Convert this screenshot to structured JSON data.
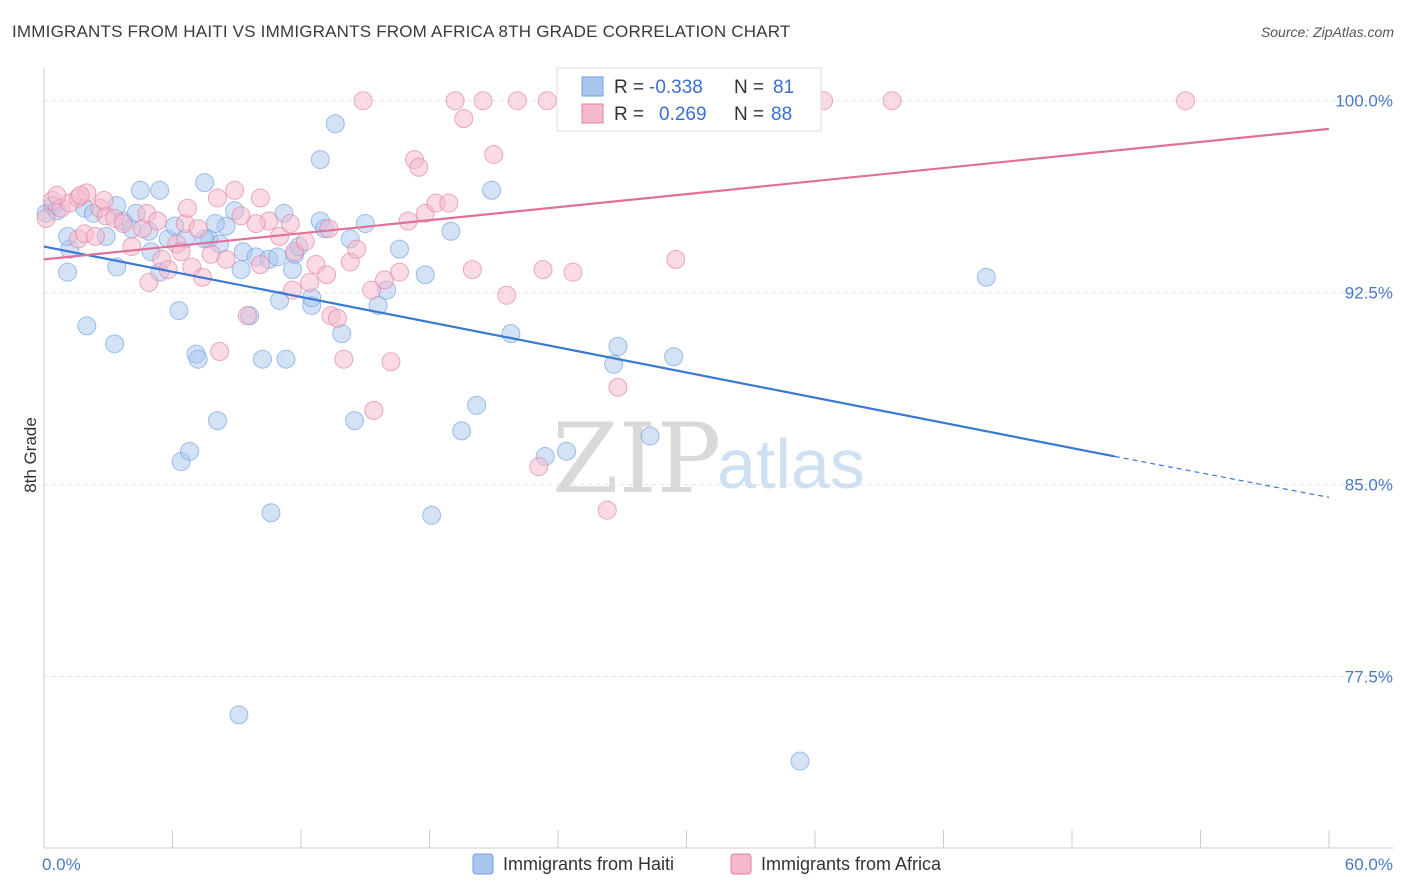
{
  "title": "IMMIGRANTS FROM HAITI VS IMMIGRANTS FROM AFRICA 8TH GRADE CORRELATION CHART",
  "source": "Source: ZipAtlas.com",
  "watermark": {
    "zip": "ZIP",
    "atlas": "atlas"
  },
  "chart_data": {
    "type": "scatter",
    "ylabel": "8th Grade",
    "xlabel": "",
    "xlim": [
      0,
      60
    ],
    "ylim": [
      70.8,
      101.2
    ],
    "x_tick_labels": [
      "0.0%",
      "60.0%"
    ],
    "y_ticks": [
      {
        "value": 100.0,
        "label": "100.0%"
      },
      {
        "value": 92.5,
        "label": "92.5%"
      },
      {
        "value": 85.0,
        "label": "85.0%"
      },
      {
        "value": 77.5,
        "label": "77.5%"
      }
    ],
    "grid": true,
    "legend_position": "bottom",
    "stats": {
      "r_label": "R =",
      "n_label": "N =",
      "rows": [
        {
          "series": "Immigrants from Haiti",
          "r": "-0.338",
          "n": "81"
        },
        {
          "series": "Immigrants from Africa",
          "r": "0.269",
          "n": "88"
        }
      ]
    },
    "series": [
      {
        "name": "Immigrants from Haiti",
        "color": "#6f9fdf",
        "fill": "#a9c6ee",
        "trend": {
          "x": [
            0,
            50.0
          ],
          "y": [
            94.3,
            86.1
          ],
          "dashed_to": [
            60,
            84.5
          ]
        },
        "points": [
          [
            0.1,
            95.6
          ],
          [
            0.4,
            95.9
          ],
          [
            0.6,
            95.7
          ],
          [
            1.2,
            94.2
          ],
          [
            1.1,
            93.3
          ],
          [
            1.9,
            95.8
          ],
          [
            2.3,
            95.6
          ],
          [
            2.9,
            94.7
          ],
          [
            3.4,
            95.9
          ],
          [
            3.7,
            95.3
          ],
          [
            3.4,
            93.5
          ],
          [
            4.1,
            95.0
          ],
          [
            4.3,
            95.6
          ],
          [
            4.5,
            96.5
          ],
          [
            4.9,
            94.9
          ],
          [
            5.0,
            94.1
          ],
          [
            5.4,
            96.5
          ],
          [
            5.4,
            93.3
          ],
          [
            5.8,
            94.6
          ],
          [
            6.1,
            95.1
          ],
          [
            6.3,
            91.8
          ],
          [
            6.6,
            94.6
          ],
          [
            7.1,
            90.1
          ],
          [
            7.2,
            89.9
          ],
          [
            7.5,
            96.8
          ],
          [
            7.7,
            94.6
          ],
          [
            8.1,
            87.5
          ],
          [
            8.2,
            94.4
          ],
          [
            8.5,
            95.1
          ],
          [
            8.9,
            95.7
          ],
          [
            9.2,
            93.4
          ],
          [
            9.1,
            76.0
          ],
          [
            9.3,
            94.1
          ],
          [
            9.6,
            91.6
          ],
          [
            9.9,
            93.9
          ],
          [
            10.2,
            89.9
          ],
          [
            10.5,
            93.8
          ],
          [
            10.6,
            83.9
          ],
          [
            11.0,
            92.2
          ],
          [
            11.2,
            95.6
          ],
          [
            11.3,
            89.9
          ],
          [
            11.6,
            93.4
          ],
          [
            11.7,
            94.0
          ],
          [
            11.9,
            94.3
          ],
          [
            12.5,
            92.0
          ],
          [
            12.9,
            95.3
          ],
          [
            13.1,
            95.0
          ],
          [
            12.9,
            97.7
          ],
          [
            13.6,
            99.1
          ],
          [
            13.9,
            90.9
          ],
          [
            14.3,
            94.6
          ],
          [
            14.5,
            87.5
          ],
          [
            15.0,
            95.2
          ],
          [
            15.6,
            92.0
          ],
          [
            16.0,
            92.6
          ],
          [
            16.6,
            94.2
          ],
          [
            17.8,
            93.2
          ],
          [
            18.1,
            83.8
          ],
          [
            19.0,
            94.9
          ],
          [
            19.5,
            87.1
          ],
          [
            20.2,
            88.1
          ],
          [
            20.9,
            96.5
          ],
          [
            21.8,
            90.9
          ],
          [
            23.4,
            86.1
          ],
          [
            24.4,
            86.3
          ],
          [
            26.8,
            90.4
          ],
          [
            26.6,
            89.7
          ],
          [
            28.3,
            86.9
          ],
          [
            29.4,
            90.0
          ],
          [
            35.3,
            74.2
          ],
          [
            44.0,
            93.1
          ],
          [
            2.0,
            91.2
          ],
          [
            3.3,
            90.5
          ],
          [
            6.4,
            85.9
          ],
          [
            6.8,
            86.3
          ],
          [
            1.1,
            94.7
          ],
          [
            7.5,
            94.6
          ],
          [
            10.9,
            93.9
          ],
          [
            8.0,
            95.2
          ],
          [
            12.5,
            92.3
          ],
          [
            30.0,
            100.0
          ]
        ]
      },
      {
        "name": "Immigrants from Africa",
        "color": "#e07fa2",
        "fill": "#f5b8cc",
        "trend": {
          "x": [
            0,
            60
          ],
          "y": [
            93.8,
            98.9
          ]
        },
        "points": [
          [
            0.1,
            95.4
          ],
          [
            0.4,
            96.1
          ],
          [
            0.8,
            95.8
          ],
          [
            1.2,
            96.0
          ],
          [
            1.6,
            96.2
          ],
          [
            1.6,
            94.6
          ],
          [
            1.9,
            94.8
          ],
          [
            2.0,
            96.4
          ],
          [
            2.4,
            94.7
          ],
          [
            2.6,
            95.8
          ],
          [
            2.9,
            95.5
          ],
          [
            3.3,
            95.4
          ],
          [
            3.7,
            95.2
          ],
          [
            4.1,
            94.3
          ],
          [
            4.6,
            95.0
          ],
          [
            4.8,
            95.6
          ],
          [
            4.9,
            92.9
          ],
          [
            5.3,
            95.3
          ],
          [
            5.5,
            93.8
          ],
          [
            5.8,
            93.4
          ],
          [
            6.2,
            94.4
          ],
          [
            6.4,
            94.1
          ],
          [
            6.6,
            95.2
          ],
          [
            6.9,
            93.5
          ],
          [
            7.2,
            95.0
          ],
          [
            7.4,
            93.1
          ],
          [
            7.8,
            94.0
          ],
          [
            8.1,
            96.2
          ],
          [
            8.2,
            90.2
          ],
          [
            8.5,
            93.8
          ],
          [
            8.9,
            96.5
          ],
          [
            9.2,
            95.5
          ],
          [
            9.5,
            91.6
          ],
          [
            10.1,
            93.6
          ],
          [
            10.1,
            96.2
          ],
          [
            10.5,
            95.3
          ],
          [
            11.0,
            94.7
          ],
          [
            11.5,
            95.2
          ],
          [
            11.6,
            92.6
          ],
          [
            11.7,
            94.1
          ],
          [
            12.2,
            94.5
          ],
          [
            12.7,
            93.6
          ],
          [
            13.2,
            93.2
          ],
          [
            13.3,
            95.0
          ],
          [
            13.4,
            91.6
          ],
          [
            13.7,
            91.5
          ],
          [
            14.0,
            89.9
          ],
          [
            14.3,
            93.7
          ],
          [
            14.6,
            94.2
          ],
          [
            14.9,
            100.0
          ],
          [
            15.3,
            92.6
          ],
          [
            15.4,
            87.9
          ],
          [
            15.9,
            93.0
          ],
          [
            16.2,
            89.8
          ],
          [
            16.6,
            93.3
          ],
          [
            17.0,
            95.3
          ],
          [
            17.3,
            97.7
          ],
          [
            17.5,
            97.4
          ],
          [
            17.8,
            95.6
          ],
          [
            18.3,
            96.0
          ],
          [
            18.9,
            96.0
          ],
          [
            19.2,
            100.0
          ],
          [
            19.6,
            99.3
          ],
          [
            20.0,
            93.4
          ],
          [
            20.5,
            100.0
          ],
          [
            21.0,
            97.9
          ],
          [
            21.6,
            92.4
          ],
          [
            22.1,
            100.0
          ],
          [
            23.3,
            93.4
          ],
          [
            23.5,
            100.0
          ],
          [
            24.7,
            93.3
          ],
          [
            25.2,
            100.0
          ],
          [
            26.3,
            84.0
          ],
          [
            26.8,
            88.8
          ],
          [
            28.1,
            100.0
          ],
          [
            29.5,
            93.8
          ],
          [
            33.0,
            100.0
          ],
          [
            34.7,
            100.0
          ],
          [
            36.4,
            100.0
          ],
          [
            39.6,
            100.0
          ],
          [
            53.3,
            100.0
          ],
          [
            23.1,
            85.7
          ],
          [
            12.4,
            92.9
          ],
          [
            1.7,
            96.3
          ],
          [
            2.8,
            96.1
          ],
          [
            9.9,
            95.2
          ],
          [
            6.7,
            95.8
          ],
          [
            0.6,
            96.3
          ]
        ]
      }
    ]
  }
}
